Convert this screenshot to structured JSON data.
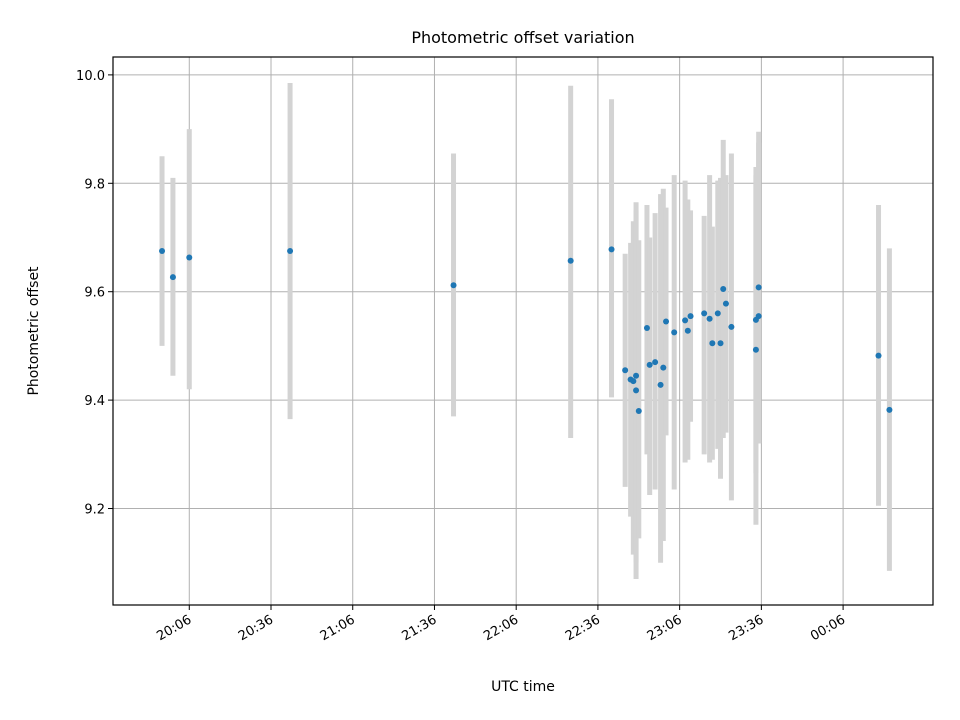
{
  "chart_data": {
    "type": "scatter",
    "title": "Photometric offset variation",
    "xlabel": "UTC time",
    "ylabel": "Photometric offset",
    "grid": true,
    "x_ticks": [
      "20:06",
      "20:36",
      "21:06",
      "21:36",
      "22:06",
      "22:36",
      "23:06",
      "23:36",
      "00:06"
    ],
    "y_ticks": [
      "9.2",
      "9.4",
      "9.6",
      "9.8",
      "10.0"
    ],
    "xlim": [
      "19:38",
      "00:39"
    ],
    "ylim": [
      9.022,
      10.033
    ],
    "colors": {
      "point": "#1f77b4",
      "errorbar": "#d3d3d3",
      "grid": "#b0b0b0"
    },
    "points": [
      {
        "x": "19:56",
        "y": 9.675,
        "lo": 9.5,
        "hi": 9.85
      },
      {
        "x": "20:00",
        "y": 9.627,
        "lo": 9.445,
        "hi": 9.81
      },
      {
        "x": "20:06",
        "y": 9.663,
        "lo": 9.42,
        "hi": 9.9
      },
      {
        "x": "20:43",
        "y": 9.675,
        "lo": 9.365,
        "hi": 9.985
      },
      {
        "x": "21:43",
        "y": 9.612,
        "lo": 9.37,
        "hi": 9.855
      },
      {
        "x": "22:26",
        "y": 9.657,
        "lo": 9.33,
        "hi": 9.98
      },
      {
        "x": "22:41",
        "y": 9.678,
        "lo": 9.405,
        "hi": 9.955
      },
      {
        "x": "22:46",
        "y": 9.455,
        "lo": 9.24,
        "hi": 9.67
      },
      {
        "x": "22:48",
        "y": 9.438,
        "lo": 9.185,
        "hi": 9.69
      },
      {
        "x": "22:49",
        "y": 9.435,
        "lo": 9.115,
        "hi": 9.73
      },
      {
        "x": "22:50",
        "y": 9.418,
        "lo": 9.07,
        "hi": 9.765
      },
      {
        "x": "22:50",
        "y": 9.445,
        "lo": 9.1,
        "hi": 9.75
      },
      {
        "x": "22:51",
        "y": 9.38,
        "lo": 9.145,
        "hi": 9.695
      },
      {
        "x": "22:54",
        "y": 9.533,
        "lo": 9.3,
        "hi": 9.76
      },
      {
        "x": "22:55",
        "y": 9.465,
        "lo": 9.225,
        "hi": 9.7
      },
      {
        "x": "22:57",
        "y": 9.47,
        "lo": 9.235,
        "hi": 9.745
      },
      {
        "x": "22:59",
        "y": 9.428,
        "lo": 9.1,
        "hi": 9.78
      },
      {
        "x": "23:00",
        "y": 9.46,
        "lo": 9.14,
        "hi": 9.79
      },
      {
        "x": "23:01",
        "y": 9.545,
        "lo": 9.335,
        "hi": 9.755
      },
      {
        "x": "23:04",
        "y": 9.525,
        "lo": 9.235,
        "hi": 9.815
      },
      {
        "x": "23:08",
        "y": 9.547,
        "lo": 9.285,
        "hi": 9.805
      },
      {
        "x": "23:09",
        "y": 9.528,
        "lo": 9.29,
        "hi": 9.77
      },
      {
        "x": "23:10",
        "y": 9.555,
        "lo": 9.36,
        "hi": 9.75
      },
      {
        "x": "23:15",
        "y": 9.56,
        "lo": 9.3,
        "hi": 9.74
      },
      {
        "x": "23:17",
        "y": 9.55,
        "lo": 9.285,
        "hi": 9.815
      },
      {
        "x": "23:18",
        "y": 9.505,
        "lo": 9.29,
        "hi": 9.72
      },
      {
        "x": "23:20",
        "y": 9.56,
        "lo": 9.31,
        "hi": 9.805
      },
      {
        "x": "23:21",
        "y": 9.505,
        "lo": 9.255,
        "hi": 9.81
      },
      {
        "x": "23:22",
        "y": 9.605,
        "lo": 9.33,
        "hi": 9.88
      },
      {
        "x": "23:23",
        "y": 9.578,
        "lo": 9.34,
        "hi": 9.815
      },
      {
        "x": "23:25",
        "y": 9.535,
        "lo": 9.215,
        "hi": 9.855
      },
      {
        "x": "23:34",
        "y": 9.548,
        "lo": 9.265,
        "hi": 9.83
      },
      {
        "x": "23:34",
        "y": 9.493,
        "lo": 9.17,
        "hi": 9.815
      },
      {
        "x": "23:35",
        "y": 9.555,
        "lo": 9.32,
        "hi": 9.875
      },
      {
        "x": "23:35",
        "y": 9.608,
        "lo": 9.32,
        "hi": 9.895
      },
      {
        "x": "00:19",
        "y": 9.482,
        "lo": 9.205,
        "hi": 9.76
      },
      {
        "x": "00:23",
        "y": 9.382,
        "lo": 9.085,
        "hi": 9.68
      }
    ]
  }
}
